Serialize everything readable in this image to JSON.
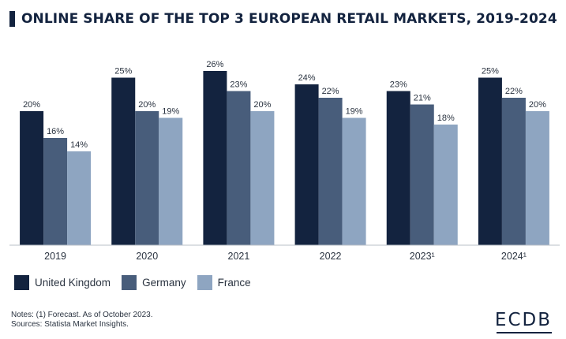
{
  "title": "ONLINE SHARE OF THE TOP 3 EUROPEAN RETAIL MARKETS, 2019-2024",
  "colors": {
    "uk": "#13233f",
    "germany": "#485d7b",
    "france": "#8ea5c1",
    "axis": "#b9bfc7",
    "title_mark": "#13233f"
  },
  "legend": [
    {
      "label": "United Kingdom",
      "color": "#13233f"
    },
    {
      "label": "Germany",
      "color": "#485d7b"
    },
    {
      "label": "France",
      "color": "#8ea5c1"
    }
  ],
  "notes": {
    "line1": "Notes: (1) Forecast. As of October 2023.",
    "line2": "Sources: Statista Market Insights."
  },
  "brand": "ECDB",
  "chart_data": {
    "type": "bar",
    "title": "ONLINE SHARE OF THE TOP 3 EUROPEAN RETAIL MARKETS, 2019-2024",
    "categories": [
      "2019",
      "2020",
      "2021",
      "2022",
      "2023¹",
      "2024¹"
    ],
    "series": [
      {
        "name": "United Kingdom",
        "values": [
          20,
          25,
          26,
          24,
          23,
          25
        ],
        "labels": [
          "20%",
          "25%",
          "26%",
          "24%",
          "23%",
          "25%"
        ]
      },
      {
        "name": "Germany",
        "values": [
          16,
          20,
          23,
          22,
          21,
          22
        ],
        "labels": [
          "16%",
          "20%",
          "23%",
          "22%",
          "21%",
          "22%"
        ]
      },
      {
        "name": "France",
        "values": [
          14,
          19,
          20,
          19,
          18,
          20
        ],
        "labels": [
          "14%",
          "19%",
          "20%",
          "19%",
          "18%",
          "20%"
        ]
      }
    ],
    "unit": "%",
    "xlabel": "",
    "ylabel": "",
    "ylim": [
      0,
      26
    ],
    "grid": false,
    "legend_position": "bottom-left"
  }
}
